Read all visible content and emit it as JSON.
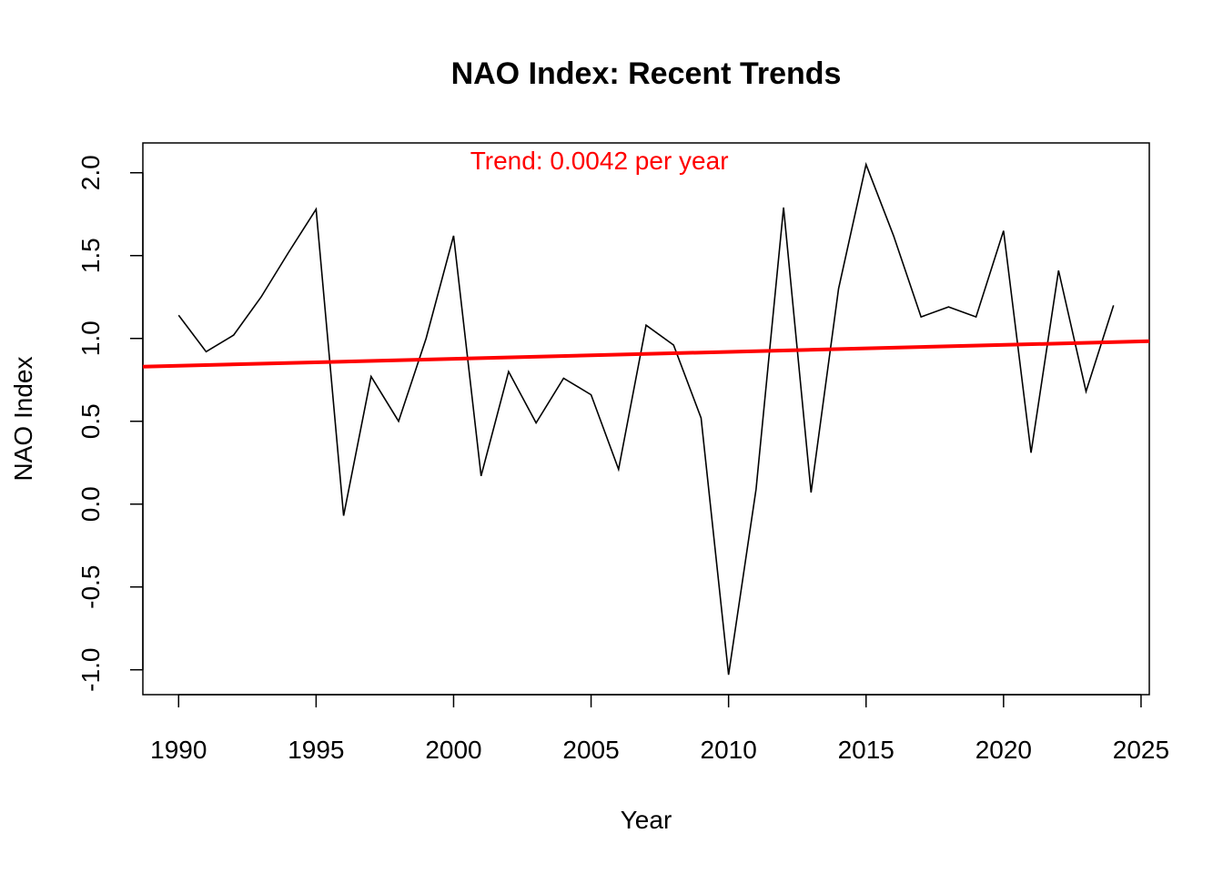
{
  "chart_data": {
    "type": "line",
    "title": "NAO Index: Recent Trends",
    "xlabel": "Year",
    "ylabel": "NAO Index",
    "xlim": [
      1988.7,
      2025.3
    ],
    "ylim": [
      -1.15,
      2.18
    ],
    "x_ticks": [
      1990,
      1995,
      2000,
      2005,
      2010,
      2015,
      2020,
      2025
    ],
    "y_ticks": [
      -1.0,
      -0.5,
      0.0,
      0.5,
      1.0,
      1.5,
      2.0
    ],
    "y_tick_labels": [
      "-1.0",
      "-0.5",
      "0.0",
      "0.5",
      "1.0",
      "1.5",
      "2.0"
    ],
    "grid": false,
    "series": [
      {
        "color": "#000000",
        "x": [
          1990,
          1991,
          1992,
          1993,
          1994,
          1995,
          1996,
          1997,
          1998,
          1999,
          2000,
          2001,
          2002,
          2003,
          2004,
          2005,
          2006,
          2007,
          2008,
          2009,
          2010,
          2011,
          2012,
          2013,
          2014,
          2015,
          2016,
          2017,
          2018,
          2019,
          2020,
          2021,
          2022,
          2023,
          2024
        ],
        "y": [
          1.14,
          0.92,
          1.02,
          1.25,
          1.52,
          1.78,
          -0.07,
          0.77,
          0.5,
          1.0,
          1.62,
          0.17,
          0.8,
          0.49,
          0.76,
          0.66,
          0.21,
          1.08,
          0.96,
          0.52,
          -1.03,
          0.09,
          1.79,
          0.07,
          1.3,
          2.05,
          1.62,
          1.13,
          1.19,
          1.13,
          1.65,
          0.31,
          1.41,
          0.68,
          1.2
        ]
      }
    ],
    "trend_line": {
      "color": "#ff0000",
      "slope": 0.0042,
      "intercept_at_1990": 0.835
    },
    "annotations": [
      {
        "text": "Trend: 0.0042 per year",
        "color": "#ff0000",
        "x": 2005.3,
        "y": 2.02
      }
    ]
  }
}
